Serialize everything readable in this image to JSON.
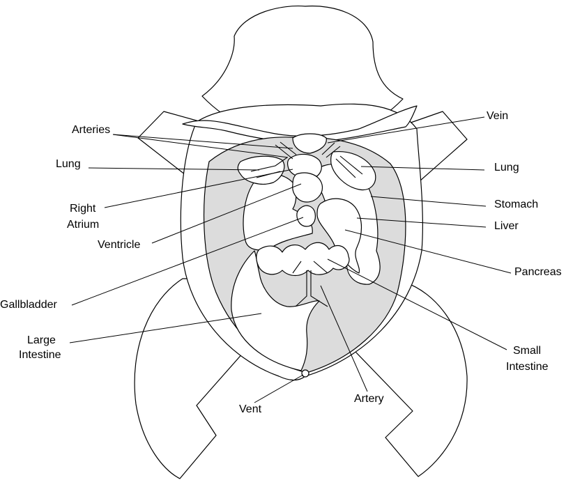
{
  "labels": {
    "arteries": "Arteries",
    "vein": "Vein",
    "lung_left": "Lung",
    "lung_right": "Lung",
    "right_atrium_line1": "Right",
    "right_atrium_line2": "Atrium",
    "stomach": "Stomach",
    "liver": "Liver",
    "ventricle": "Ventricle",
    "pancreas": "Pancreas",
    "gallbladder": "Gallbladder",
    "large_intestine_line1": "Large",
    "large_intestine_line2": "Intestine",
    "small_intestine_line1": "Small",
    "small_intestine_line2": "Intestine",
    "vent": "Vent",
    "artery": "Artery"
  }
}
